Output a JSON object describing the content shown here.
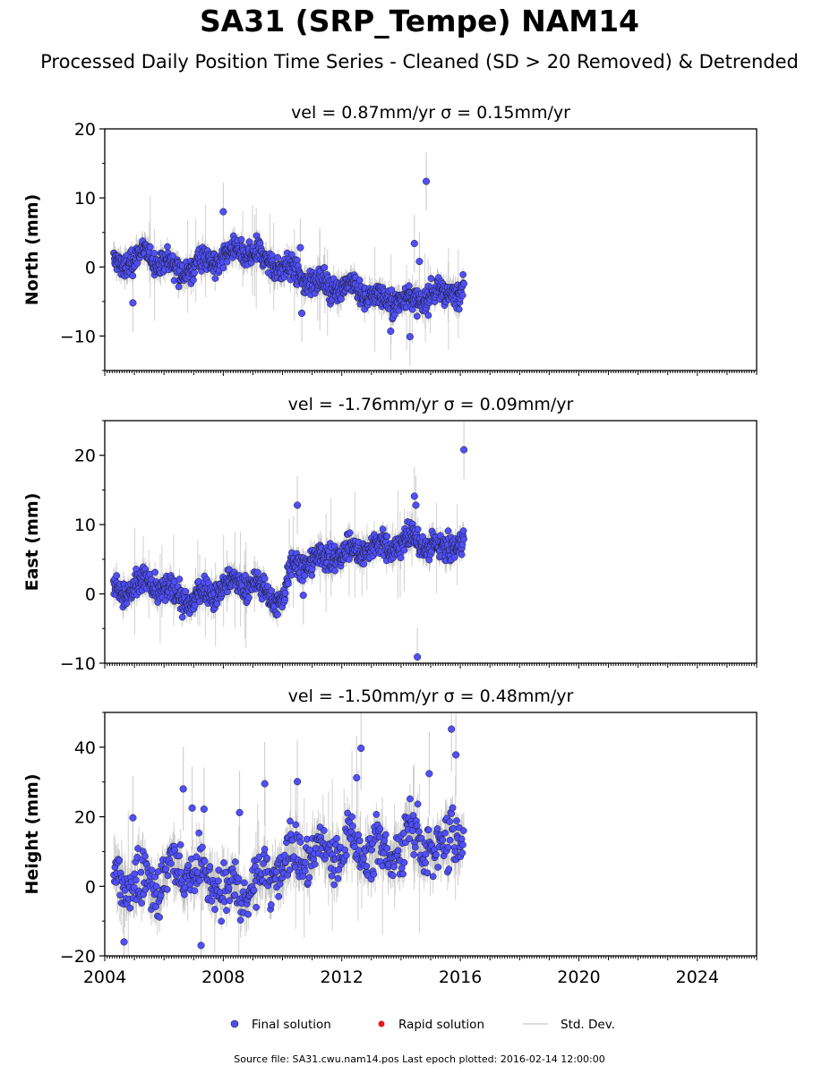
{
  "figure": {
    "title": "SA31 (SRP_Tempe) NAM14",
    "subtitle": "Processed Daily Position Time Series - Cleaned (SD > 20 Removed) & Detrended",
    "footer": "Source file: SA31.cwu.nam14.pos  Last epoch plotted: 2016-02-14 12:00:00"
  },
  "legend": {
    "final_label": "Final solution",
    "rapid_label": "Rapid solution",
    "std_label": "Std. Dev."
  },
  "colors": {
    "final": "#4f4fff",
    "rapid": "#e41a1c",
    "std": "#bdbdbd",
    "marker_edge": "#1a1a1a"
  },
  "chart_data": [
    {
      "type": "scatter",
      "title": "vel = 0.87mm/yr   σ = 0.15mm/yr",
      "ylabel": "North (mm)",
      "xlim": [
        2004.0,
        2026.0
      ],
      "ylim": [
        -15,
        20
      ],
      "yticks": [
        -10,
        0,
        10,
        20
      ],
      "xticks": [
        2004,
        2008,
        2012,
        2016,
        2020,
        2024
      ],
      "data_span": [
        2004.3,
        2016.12
      ],
      "trend_points": [
        [
          2004.3,
          0.3
        ],
        [
          2005.5,
          1.8
        ],
        [
          2006.6,
          -0.5
        ],
        [
          2008.6,
          2.3
        ],
        [
          2009.6,
          0.8
        ],
        [
          2011.0,
          -2.2
        ],
        [
          2012.5,
          -3.2
        ],
        [
          2013.4,
          -5.0
        ],
        [
          2014.5,
          -4.8
        ],
        [
          2016.12,
          -3.0
        ]
      ],
      "outliers": [
        [
          2004.95,
          -5.2
        ],
        [
          2014.45,
          3.4
        ],
        [
          2014.62,
          0.8
        ],
        [
          2014.85,
          12.4
        ],
        [
          2014.3,
          -10.1
        ],
        [
          2013.65,
          -9.3
        ],
        [
          2010.65,
          -6.7
        ],
        [
          2010.6,
          2.8
        ],
        [
          2008.0,
          8.0
        ]
      ]
    },
    {
      "type": "scatter",
      "title": "vel = -1.76mm/yr   σ = 0.09mm/yr",
      "ylabel": "East (mm)",
      "xlim": [
        2004.0,
        2026.0
      ],
      "ylim": [
        -10,
        25
      ],
      "yticks": [
        -10,
        0,
        10,
        20
      ],
      "xticks": [
        2004,
        2008,
        2012,
        2016,
        2020,
        2024
      ],
      "data_span": [
        2004.3,
        2016.12
      ],
      "trend_points": [
        [
          2004.3,
          0.5
        ],
        [
          2005.5,
          1.5
        ],
        [
          2006.8,
          -1.0
        ],
        [
          2008.7,
          1.8
        ],
        [
          2010.0,
          -1.0
        ],
        [
          2010.3,
          4.0
        ],
        [
          2011.5,
          5.3
        ],
        [
          2012.5,
          6.3
        ],
        [
          2013.4,
          6.8
        ],
        [
          2014.5,
          8.0
        ],
        [
          2015.2,
          6.5
        ],
        [
          2016.12,
          7.5
        ]
      ],
      "outliers": [
        [
          2010.5,
          12.8
        ],
        [
          2014.45,
          14.1
        ],
        [
          2014.5,
          12.8
        ],
        [
          2014.55,
          -9.1
        ],
        [
          2016.12,
          20.8
        ],
        [
          2010.7,
          -0.2
        ]
      ]
    },
    {
      "type": "scatter",
      "title": "vel = -1.50mm/yr   σ = 0.48mm/yr",
      "ylabel": "Height (mm)",
      "xlim": [
        2004.0,
        2026.0
      ],
      "ylim": [
        -20,
        50
      ],
      "yticks": [
        -20,
        0,
        20,
        40
      ],
      "xticks": [
        2004,
        2008,
        2012,
        2016,
        2020,
        2024
      ],
      "xtick_labels": [
        "2004",
        "2008",
        "2012",
        "2016",
        "2020",
        "2024"
      ],
      "data_span": [
        2004.3,
        2016.12
      ],
      "trend_points": [
        [
          2004.3,
          2.0
        ],
        [
          2005.3,
          0.0
        ],
        [
          2006.5,
          5.0
        ],
        [
          2007.5,
          2.0
        ],
        [
          2008.5,
          -2.0
        ],
        [
          2009.5,
          3.0
        ],
        [
          2010.5,
          10.0
        ],
        [
          2011.5,
          8.0
        ],
        [
          2012.5,
          12.0
        ],
        [
          2013.5,
          8.0
        ],
        [
          2014.5,
          15.0
        ],
        [
          2015.2,
          8.0
        ],
        [
          2015.7,
          18.0
        ],
        [
          2016.12,
          10.0
        ]
      ],
      "outliers": [
        [
          2015.7,
          45.2
        ],
        [
          2012.65,
          39.7
        ],
        [
          2015.85,
          37.8
        ],
        [
          2014.95,
          32.4
        ],
        [
          2012.5,
          31.2
        ],
        [
          2010.5,
          30.1
        ],
        [
          2009.4,
          29.5
        ],
        [
          2006.65,
          28.0
        ],
        [
          2004.95,
          19.7
        ],
        [
          2006.95,
          22.5
        ],
        [
          2007.35,
          22.2
        ],
        [
          2008.55,
          21.2
        ],
        [
          2007.25,
          -17.0
        ],
        [
          2004.65,
          -16.0
        ]
      ]
    }
  ]
}
